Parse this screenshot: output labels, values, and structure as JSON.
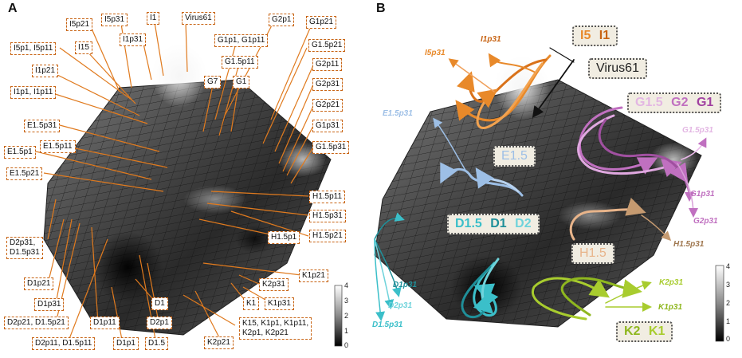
{
  "panel_a": {
    "letter": "A",
    "labels": {
      "i5p21": "I5p21",
      "i5p31": "I5p31",
      "i1": "I1",
      "virus61": "Virus61",
      "g2p1": "G2p1",
      "g1p21": "G1p21",
      "i1p31": "I1p31",
      "i5p1_i5p11": "I5p1, I5p11",
      "i15": "I15",
      "g1p1_g1p11": "G1p1, G1p11",
      "g15p21": "G1.5p21",
      "g15p11": "G1.5p11",
      "g2p11": "G2p11",
      "i1p21": "I1p21",
      "g7": "G7",
      "g1": "G1",
      "g2p31": "G2p31",
      "i1p1_i1p11": "I1p1, I1p11",
      "g2p21": "G2p21",
      "e15p31": "E1.5p31",
      "g1p31": "G1p31",
      "e15p1": "E1.5p1",
      "e15p11": "E1.5p11",
      "g15p31": "G1.5p31",
      "e15p21": "E1.5p21",
      "h15p11": "H1.5p11",
      "h15p31": "H1.5p31",
      "h15p1": "H1.5p1",
      "h15p21": "H1.5p21",
      "d2p31_d15p31": "D2p31,\nD1.5p31",
      "k1p21": "K1p21",
      "d1p21": "D1p21",
      "k2p31": "K2p31",
      "d1p31": "D1p31",
      "k1p31": "K1p31",
      "d1": "D1",
      "k1": "K1",
      "d2p21_d15p21": "D2p21, D1.5p21",
      "d1p11": "D1p11",
      "d2p1": "D2p1",
      "k15_etc": "K15, K1p1, K1p11,\nK2p1, K2p21",
      "d2p11_d15p11": "D2p11, D1.5p11",
      "d1p1": "D1p1",
      "d15": "D1.5",
      "k2p21": "K2p21"
    },
    "colorbar_ticks": [
      "4",
      "3",
      "2",
      "1",
      "0"
    ]
  },
  "panel_b": {
    "letter": "B",
    "tags": {
      "i5": "I5",
      "i1": "I1",
      "virus61": "Virus61",
      "g15": "G1.5",
      "g2": "G2",
      "g1": "G1",
      "e15": "E1.5",
      "d15": "D1.5",
      "d1": "D1",
      "d2": "D2",
      "h15": "H1.5",
      "k2": "K2",
      "k1": "K1"
    },
    "arrow_labels": {
      "i1p31": "I1p31",
      "i5p31": "I5p31",
      "e15p31": "E1.5p31",
      "g15p31": "G1.5p31",
      "g1p31": "G1p31",
      "g2p31": "G2p31",
      "h15p31": "H1.5p31",
      "d1p31": "D1p31",
      "d2p31": "D2p31",
      "d15p31": "D1.5p31",
      "k2p31": "K2p31",
      "k1p31": "K1p31"
    },
    "colorbar_ticks": [
      "4",
      "3",
      "2",
      "1",
      "0"
    ]
  },
  "colors": {
    "label_border": "#c86414",
    "leader_line": "#e07a1e",
    "i_group": "#e8892a",
    "g_group": "#c070c0",
    "e_group": "#9dbfe6",
    "d_group": "#3bbfc9",
    "h_group": "#e8b48a",
    "k_group": "#a8cc2e",
    "tag_bg": "#f1ede2"
  }
}
